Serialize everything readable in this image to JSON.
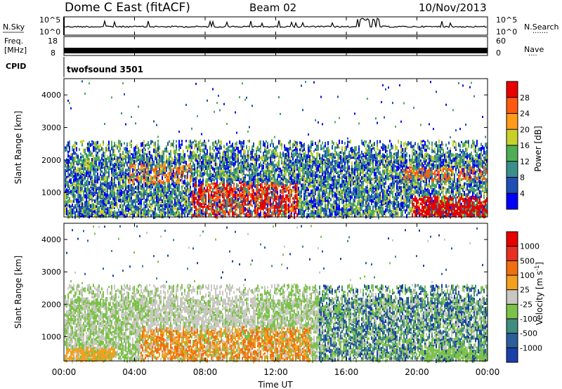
{
  "header": {
    "station": "Dome C East (fitACF)",
    "beam": "Beam 02",
    "date": "10/Nov/2013"
  },
  "chart_data": [
    {
      "type": "line",
      "panel": "noise",
      "left_label": "N.Sky",
      "right_label": "N.Search",
      "left_ticks": [
        "10^5",
        "10^0"
      ],
      "right_ticks": [
        "10^5",
        "10^0"
      ],
      "x": [
        "00:00",
        "04:00",
        "08:00",
        "12:00",
        "16:00",
        "20:00",
        "00:00"
      ]
    },
    {
      "type": "line",
      "panel": "frequency",
      "left_label_line1": "Freq.",
      "left_label_line2": "[MHz]",
      "right_label": "Nave",
      "left_ticks": [
        "18",
        "8"
      ],
      "right_ticks": [
        "60",
        "0"
      ],
      "cpid_label": "CPID",
      "cpid_program": "twofsound 3501"
    },
    {
      "type": "heatmap",
      "panel": "power",
      "ylabel": "Slant Range [km]",
      "y_ticks": [
        1000,
        2000,
        3000,
        4000
      ],
      "ylim": [
        250,
        4500
      ],
      "colorbar_label": "Power [dB]",
      "colorbar_ticks": [
        "4",
        "8",
        "12",
        "16",
        "20",
        "24",
        "28"
      ],
      "colorbar_colors": [
        "#0000ff",
        "#1f4fb4",
        "#3a8f8c",
        "#4fae55",
        "#c8d02a",
        "#ff9a1a",
        "#ff5a10",
        "#e80000"
      ]
    },
    {
      "type": "heatmap",
      "panel": "velocity",
      "ylabel": "Slant Range [km]",
      "y_ticks": [
        1000,
        2000,
        3000,
        4000
      ],
      "ylim": [
        250,
        4500
      ],
      "colorbar_label": "Velocity",
      "colorbar_unit": "[m s",
      "colorbar_unit_sup": "-1",
      "colorbar_unit_end": "]",
      "colorbar_ticks": [
        "1000",
        "500",
        "100",
        "25",
        "-25",
        "-100",
        "-500",
        "-1000"
      ],
      "colorbar_colors": [
        "#1a3fa8",
        "#2a5f9a",
        "#3f8c80",
        "#7cc24a",
        "#c8c8c0",
        "#f2a020",
        "#f07010",
        "#e83020",
        "#e80000"
      ]
    }
  ],
  "time_axis": {
    "ticks": [
      "00:00",
      "04:00",
      "08:00",
      "12:00",
      "16:00",
      "20:00",
      "00:00"
    ],
    "label": "Time UT"
  }
}
